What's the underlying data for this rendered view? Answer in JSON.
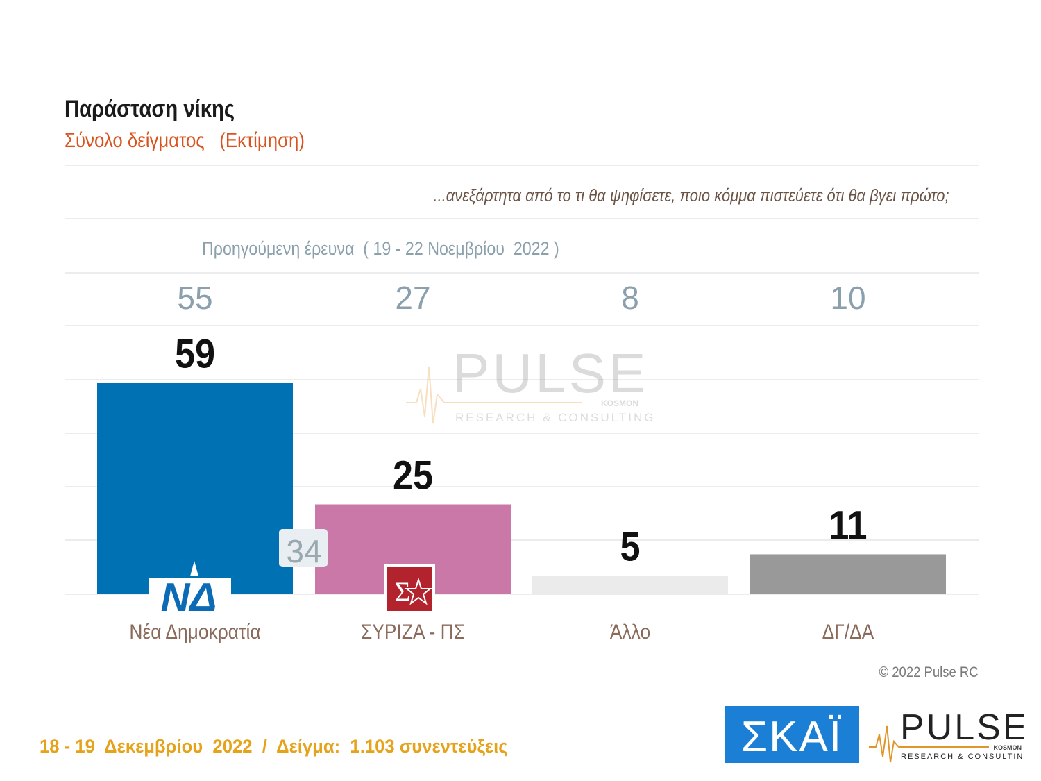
{
  "header": {
    "title": "Παράσταση νίκης",
    "subtitle": "Σύνολο δείγματος   (Εκτίμηση)"
  },
  "question": "...ανεξάρτητα από το τι θα ψηφίσετε, ποιο κόμμα πιστεύετε ότι θα βγει πρώτο;",
  "previous_survey_label": "Προηγούμενη έρευνα  ( 19 - 22 Νοεμβρίου  2022 )",
  "chart_data": {
    "type": "bar",
    "categories": [
      "Νέα Δημοκρατία",
      "ΣΥΡΙΖΑ - ΠΣ",
      "Άλλο",
      "ΔΓ/ΔΑ"
    ],
    "values": [
      59,
      25,
      5,
      11
    ],
    "previous_values": [
      55,
      27,
      8,
      10
    ],
    "gap_label": "34",
    "colors": [
      "#0071b2",
      "#c978a8",
      "#ebebeb",
      "#999999"
    ],
    "ylim": [
      0,
      70
    ],
    "grid": true
  },
  "watermark": {
    "brand": "PULSE",
    "sub_brand": "KOSMON",
    "tagline": "RESEARCH & CONSULTING"
  },
  "party_logos": {
    "nd": "ΝΔ",
    "syriza": "Σ"
  },
  "copyright": "© 2022 Pulse RC",
  "footer": {
    "text": "18 - 19  Δεκεμβρίου  2022  /  Δείγμα:  1.103 συνεντεύξεις"
  },
  "logos": {
    "skai": "ΣΚΑΪ",
    "pulse": "PULSE",
    "pulse_sub": "KOSMON",
    "pulse_tagline": "RESEARCH & CONSULTING"
  }
}
